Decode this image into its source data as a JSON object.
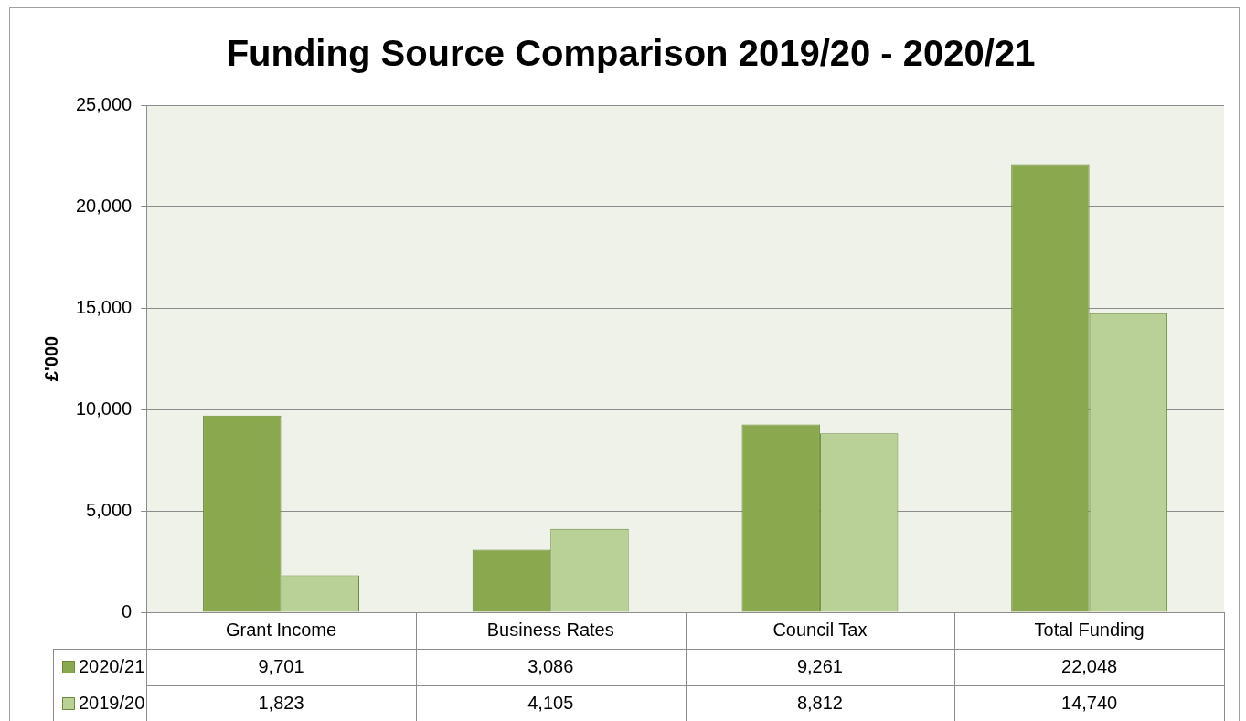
{
  "chart_data": {
    "type": "bar",
    "title": "Funding Source Comparison 2019/20 - 2020/21",
    "ylabel": "£'000",
    "categories": [
      "Grant Income",
      "Business Rates",
      "Council Tax",
      "Total Funding"
    ],
    "series": [
      {
        "name": "2020/21",
        "color": "#8aa84e",
        "values": [
          9701,
          3086,
          9261,
          22048
        ],
        "value_labels": [
          "9,701",
          "3,086",
          "9,261",
          "22,048"
        ]
      },
      {
        "name": "2019/20",
        "color": "#b9d096",
        "values": [
          1823,
          4105,
          8812,
          14740
        ],
        "value_labels": [
          "1,823",
          "4,105",
          "8,812",
          "14,740"
        ]
      }
    ],
    "ylim": [
      0,
      25000
    ],
    "yticks": [
      0,
      {
        "value": 5000,
        "label": "5,000"
      },
      {
        "value": 10000,
        "label": "10,000"
      },
      {
        "value": 15000,
        "label": "15,000"
      },
      {
        "value": 20000,
        "label": "20,000"
      },
      {
        "value": 25000,
        "label": "25,000"
      }
    ],
    "grid": "y",
    "legend": "bottom"
  }
}
